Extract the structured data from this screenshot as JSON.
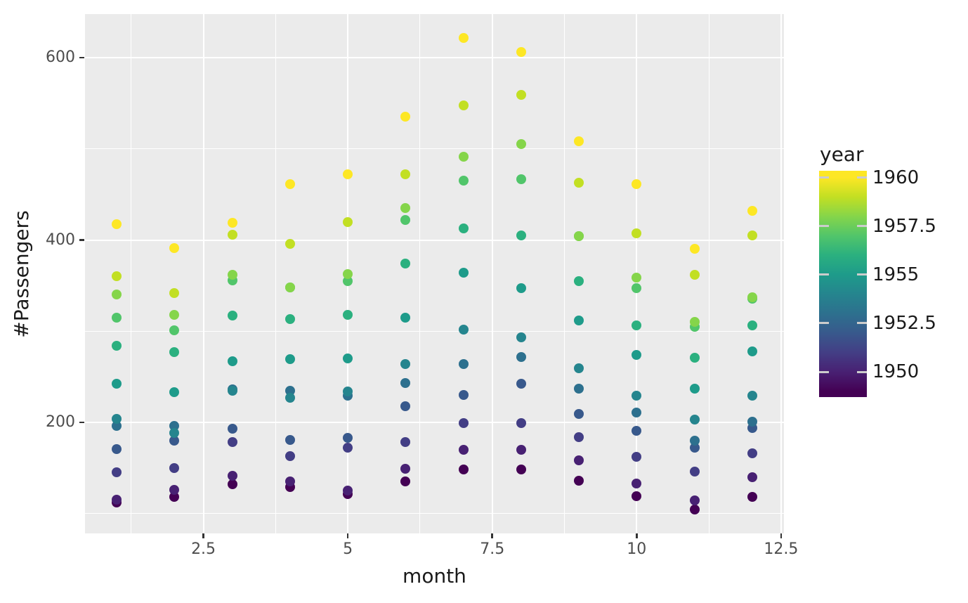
{
  "figure": {
    "background": "#ffffff",
    "panel_background": "#ebebeb",
    "grid_color": "#ffffff",
    "axis_tick_color": "#333333",
    "tick_label_color": "#4d4d4d",
    "title_color": "#1a1a1a"
  },
  "chart_data": {
    "type": "scatter",
    "title": "",
    "xlabel": "month",
    "ylabel": "#Passengers",
    "xlim": [
      0.45,
      12.55
    ],
    "ylim": [
      78.1,
      647.9
    ],
    "grid": true,
    "x": [
      1,
      2,
      3,
      4,
      5,
      6,
      7,
      8,
      9,
      10,
      11,
      12
    ],
    "x_ticks": [
      {
        "v": 2.5,
        "label": "2.5"
      },
      {
        "v": 5,
        "label": "5"
      },
      {
        "v": 7.5,
        "label": "7.5"
      },
      {
        "v": 10,
        "label": "10"
      },
      {
        "v": 12.5,
        "label": "12.5"
      }
    ],
    "x_minor": [
      1.25,
      3.75,
      6.25,
      8.75,
      11.25
    ],
    "y_ticks": [
      {
        "v": 200,
        "label": "200"
      },
      {
        "v": 400,
        "label": "400"
      },
      {
        "v": 600,
        "label": "600"
      }
    ],
    "y_minor": [
      100,
      300,
      500
    ],
    "series": [
      {
        "name": "1949",
        "year": 1949,
        "color": "#440154",
        "values": [
          112,
          118,
          132,
          129,
          121,
          135,
          148,
          148,
          136,
          119,
          104,
          118
        ]
      },
      {
        "name": "1950",
        "year": 1950,
        "color": "#482173",
        "values": [
          115,
          126,
          141,
          135,
          125,
          149,
          170,
          170,
          158,
          133,
          114,
          140
        ]
      },
      {
        "name": "1951",
        "year": 1951,
        "color": "#433E85",
        "values": [
          145,
          150,
          178,
          163,
          172,
          178,
          199,
          199,
          184,
          162,
          146,
          166
        ]
      },
      {
        "name": "1952",
        "year": 1952,
        "color": "#38598C",
        "values": [
          171,
          180,
          193,
          181,
          183,
          218,
          230,
          242,
          209,
          191,
          172,
          194
        ]
      },
      {
        "name": "1953",
        "year": 1953,
        "color": "#2D708E",
        "values": [
          196,
          196,
          236,
          235,
          229,
          243,
          264,
          272,
          237,
          211,
          180,
          201
        ]
      },
      {
        "name": "1954",
        "year": 1954,
        "color": "#25858E",
        "values": [
          204,
          188,
          235,
          227,
          234,
          264,
          302,
          293,
          259,
          229,
          203,
          229
        ]
      },
      {
        "name": "1955",
        "year": 1955,
        "color": "#1E9B8A",
        "values": [
          242,
          233,
          267,
          269,
          270,
          315,
          364,
          347,
          312,
          274,
          237,
          278
        ]
      },
      {
        "name": "1956",
        "year": 1956,
        "color": "#2BB07F",
        "values": [
          284,
          277,
          317,
          313,
          318,
          374,
          413,
          405,
          355,
          306,
          271,
          306
        ]
      },
      {
        "name": "1957",
        "year": 1957,
        "color": "#51C56A",
        "values": [
          315,
          301,
          356,
          348,
          355,
          422,
          465,
          467,
          404,
          347,
          305,
          336
        ]
      },
      {
        "name": "1958",
        "year": 1958,
        "color": "#85D54A",
        "values": [
          340,
          318,
          362,
          348,
          363,
          435,
          491,
          505,
          404,
          359,
          310,
          337
        ]
      },
      {
        "name": "1959",
        "year": 1959,
        "color": "#C2DF23",
        "values": [
          360,
          342,
          406,
          396,
          420,
          472,
          548,
          559,
          463,
          407,
          362,
          405
        ]
      },
      {
        "name": "1960",
        "year": 1960,
        "color": "#FDE725",
        "values": [
          417,
          391,
          419,
          461,
          472,
          535,
          622,
          606,
          508,
          461,
          390,
          432
        ]
      }
    ],
    "legend": {
      "title": "year",
      "position": "right",
      "ticks": [
        {
          "v": 1960,
          "label": "1960"
        },
        {
          "v": 1957.5,
          "label": "1957.5"
        },
        {
          "v": 1955,
          "label": "1955"
        },
        {
          "v": 1952.5,
          "label": "1952.5"
        },
        {
          "v": 1950,
          "label": "1950"
        }
      ],
      "gradient": [
        {
          "year": 1960,
          "color": "#FDE725"
        },
        {
          "year": 1959,
          "color": "#C2DF23"
        },
        {
          "year": 1958,
          "color": "#85D54A"
        },
        {
          "year": 1957,
          "color": "#51C56A"
        },
        {
          "year": 1956,
          "color": "#2BB07F"
        },
        {
          "year": 1955,
          "color": "#1E9B8A"
        },
        {
          "year": 1954,
          "color": "#25858E"
        },
        {
          "year": 1953,
          "color": "#2D708E"
        },
        {
          "year": 1952,
          "color": "#38598C"
        },
        {
          "year": 1951,
          "color": "#433E85"
        },
        {
          "year": 1950,
          "color": "#482173"
        },
        {
          "year": 1949,
          "color": "#440154"
        }
      ]
    }
  }
}
